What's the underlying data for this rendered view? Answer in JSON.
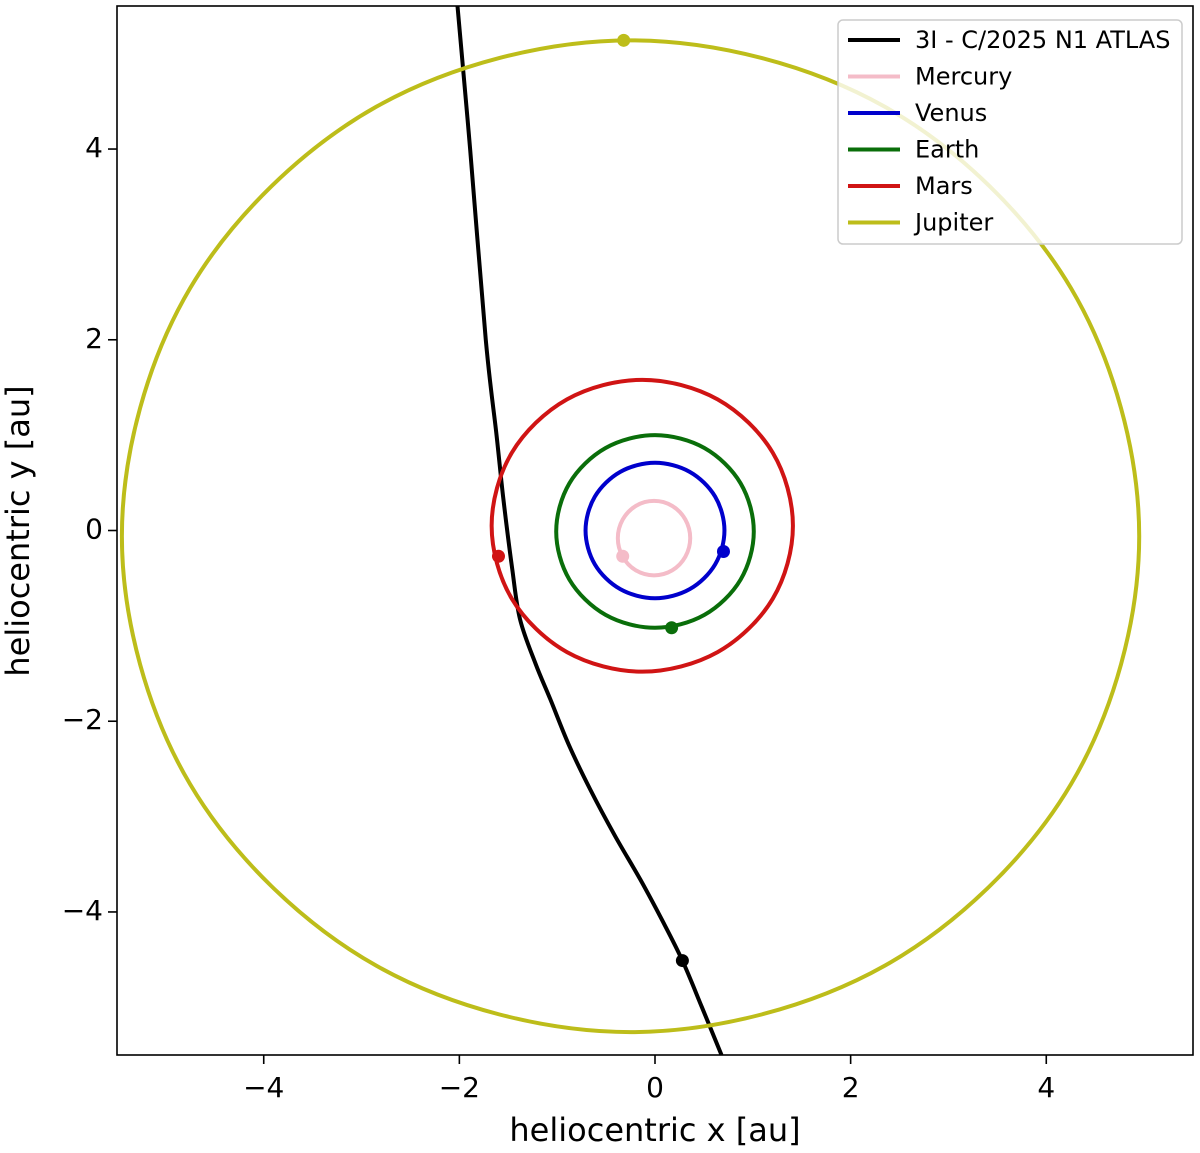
{
  "chart_data": {
    "type": "line",
    "xlabel": "heliocentric x [au]",
    "ylabel": "heliocentric y [au]",
    "xlim": [
      -5.5,
      5.5
    ],
    "ylim": [
      -5.5,
      5.5
    ],
    "xticks": [
      {
        "value": -4,
        "label": "−4"
      },
      {
        "value": -2,
        "label": "−2"
      },
      0,
      2,
      4
    ],
    "yticks": [
      {
        "value": -4,
        "label": "−4"
      },
      {
        "value": -2,
        "label": "−2"
      },
      0,
      2,
      4
    ],
    "legend": "upper right",
    "series": [
      {
        "name": "3I - C/2025 N1 ATLAS",
        "color": "#000000",
        "x": [
          -2.02,
          -1.89,
          -1.73,
          -1.62,
          -1.55,
          -1.46,
          -1.38,
          -1.22,
          -1.07,
          -0.88,
          -0.66,
          -0.41,
          -0.15,
          0.07,
          0.28,
          0.48,
          0.68
        ],
        "y": [
          5.51,
          4.0,
          2.0,
          1.0,
          0.33,
          -0.4,
          -0.93,
          -1.4,
          -1.77,
          -2.25,
          -2.72,
          -3.2,
          -3.66,
          -4.08,
          -4.51,
          -5.0,
          -5.5
        ],
        "point": {
          "x": 0.28,
          "y": -4.51
        }
      },
      {
        "name": "Mercury",
        "color": "#f4bcc8",
        "x": [
          0.36,
          0.31,
          0.175,
          -0.01,
          -0.195,
          -0.33,
          -0.38,
          -0.33,
          -0.195,
          -0.01,
          0.175,
          0.31,
          0.36
        ],
        "y": [
          -0.08,
          0.115,
          0.258,
          0.31,
          0.258,
          0.115,
          -0.08,
          -0.275,
          -0.418,
          -0.47,
          -0.418,
          -0.275,
          -0.08
        ],
        "point": {
          "x": -0.33,
          "y": -0.27
        }
      },
      {
        "name": "Venus",
        "color": "#0000cc",
        "x": [
          0.71,
          0.615,
          0.355,
          0,
          -0.355,
          -0.615,
          -0.71,
          -0.615,
          -0.355,
          0,
          0.355,
          0.615,
          0.71
        ],
        "y": [
          0,
          0.355,
          0.615,
          0.71,
          0.615,
          0.355,
          0,
          -0.355,
          -0.615,
          -0.71,
          -0.615,
          -0.355,
          0
        ],
        "point": {
          "x": 0.7,
          "y": -0.22
        }
      },
      {
        "name": "Earth",
        "color": "#0a6e0a",
        "x": [
          1.01,
          0.875,
          0.505,
          0,
          -0.505,
          -0.875,
          -1.01,
          -0.875,
          -0.505,
          0,
          0.505,
          0.875,
          1.01
        ],
        "y": [
          -0.01,
          0.495,
          0.865,
          1.0,
          0.865,
          0.495,
          -0.01,
          -0.515,
          -0.885,
          -1.02,
          -0.885,
          -0.515,
          -0.01
        ],
        "point": {
          "x": 0.17,
          "y": -1.02
        }
      },
      {
        "name": "Mars",
        "color": "#d01414",
        "x": [
          1.41,
          1.204,
          0.64,
          -0.13,
          -0.9,
          -1.464,
          -1.67,
          -1.464,
          -0.9,
          -0.13,
          0.64,
          1.204,
          1.41
        ],
        "y": [
          0.05,
          0.815,
          1.375,
          1.58,
          1.375,
          0.815,
          0.05,
          -0.715,
          -1.275,
          -1.48,
          -1.275,
          -0.715,
          0.05
        ],
        "point": {
          "x": -1.6,
          "y": -0.27
        }
      },
      {
        "name": "Jupiter",
        "color": "#bdbd1a",
        "x": [
          4.95,
          4.253,
          2.35,
          -0.25,
          -2.85,
          -4.753,
          -5.45,
          -4.753,
          -2.85,
          -0.25,
          2.35,
          4.253,
          4.95
        ],
        "y": [
          -0.06,
          2.54,
          4.443,
          5.14,
          4.443,
          2.54,
          -0.06,
          -2.66,
          -4.563,
          -5.26,
          -4.563,
          -2.66,
          -0.06
        ],
        "point": {
          "x": -0.32,
          "y": 5.14
        }
      }
    ]
  }
}
